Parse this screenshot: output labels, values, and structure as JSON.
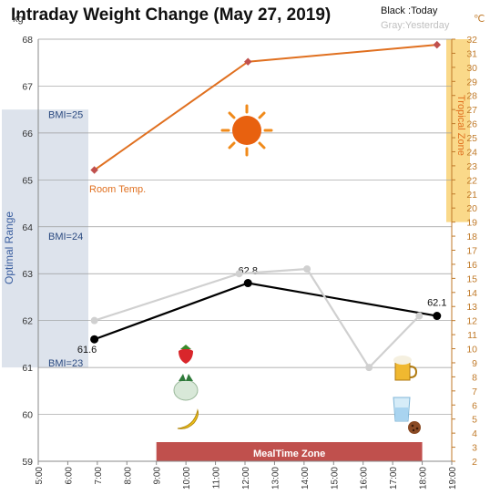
{
  "chart_data": {
    "type": "line",
    "title": "Intraday Weight Change (May 27, 2019)",
    "legend": {
      "today": "Black :Today",
      "yesterday": "Gray:Yesterday"
    },
    "units": {
      "left": "kg",
      "right": "℃"
    },
    "left_axis": {
      "min": 59,
      "max": 68,
      "ticks": [
        59,
        60,
        61,
        62,
        63,
        64,
        65,
        66,
        67,
        68
      ]
    },
    "right_axis": {
      "min": 2,
      "max": 32,
      "ticks": [
        2,
        3,
        4,
        5,
        6,
        7,
        8,
        9,
        10,
        11,
        12,
        13,
        14,
        15,
        16,
        17,
        18,
        19,
        20,
        21,
        22,
        23,
        24,
        25,
        26,
        27,
        28,
        29,
        30,
        31,
        32
      ]
    },
    "x_axis": {
      "min": 5,
      "max": 19,
      "tick_labels": [
        "5:00",
        "6:00",
        "7:00",
        "8:00",
        "9:00",
        "10:00",
        "11:00",
        "12:00",
        "13:00",
        "14:00",
        "15:00",
        "16:00",
        "17:00",
        "18:00",
        "19:00"
      ]
    },
    "grid": true,
    "series": [
      {
        "name": "Today",
        "axis": "left",
        "color": "#000000",
        "x": [
          6.9,
          12.1,
          18.5
        ],
        "y": [
          61.6,
          62.8,
          62.1
        ],
        "labels": [
          "61.6",
          "62.8",
          "62.1"
        ]
      },
      {
        "name": "Yesterday",
        "axis": "left",
        "color": "#d0d0d0",
        "x": [
          6.9,
          11.8,
          14.1,
          16.2,
          17.9
        ],
        "y": [
          62.0,
          63.0,
          63.1,
          61.0,
          62.1
        ]
      },
      {
        "name": "Room Temp.",
        "axis": "right",
        "color": "#e07020",
        "x": [
          6.9,
          12.1,
          18.5
        ],
        "y": [
          22.7,
          30.4,
          31.6
        ]
      }
    ],
    "annotations": {
      "room_temp_label": "Room Temp.",
      "tropical_zone_label": "Tropical Zone",
      "tropical_zone_range": [
        19,
        32
      ],
      "optimal_range_label": "Optimal Range",
      "optimal_range_kg": [
        61,
        66.5
      ],
      "bmi_labels": [
        {
          "text": "BMI=25",
          "kg": 66.4
        },
        {
          "text": "BMI=24",
          "kg": 63.8
        },
        {
          "text": "BMI=23",
          "kg": 61.1
        }
      ],
      "meal_zone_label": "MealTime Zone",
      "meal_zone_range": [
        9,
        18
      ]
    },
    "icons": [
      "sun-icon",
      "strawberry-icon",
      "turnip-icon",
      "banana-icon",
      "beer-icon",
      "water-glass-icon",
      "cookie-icon"
    ],
    "colors": {
      "today": "#000000",
      "yesterday": "#d0d0d0",
      "temp": "#e07020",
      "tropical": "#fad98a",
      "optimal": "#dde3ec",
      "meal": "#c0504d"
    }
  }
}
